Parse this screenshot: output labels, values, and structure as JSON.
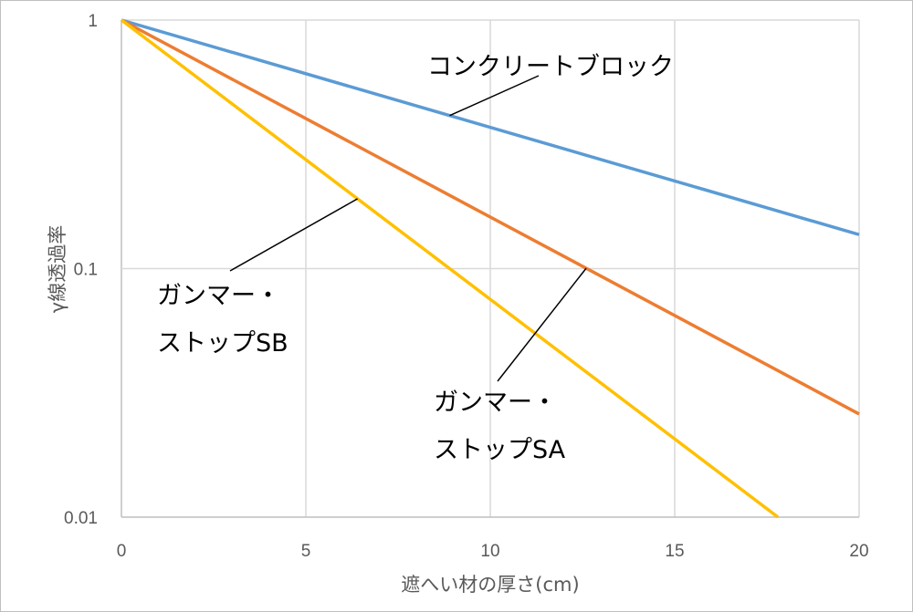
{
  "chart_data": {
    "type": "line",
    "title": "",
    "xlabel": "遮へい材の厚さ(cm)",
    "ylabel": "γ線透過率",
    "xlim": [
      0,
      20
    ],
    "ylim": [
      0.01,
      1
    ],
    "yscale": "log",
    "grid": true,
    "x_ticks": [
      "0",
      "5",
      "10",
      "15",
      "20"
    ],
    "y_ticks": [
      "1",
      "0.1",
      "0.01"
    ],
    "series": [
      {
        "name": "コンクリートブロック",
        "color": "#5B9BD5",
        "x": [
          0,
          20
        ],
        "y": [
          1,
          0.137
        ]
      },
      {
        "name": "ガンマー・ストップSA",
        "color": "#ED7D31",
        "x": [
          0,
          20
        ],
        "y": [
          1,
          0.026
        ]
      },
      {
        "name": "ガンマー・ストップSB",
        "color": "#FFC000",
        "x": [
          0,
          17.8
        ],
        "y": [
          1,
          0.01
        ]
      }
    ],
    "annotations": [
      {
        "lines": [
          "コンクリートブロック"
        ],
        "target_x": 8.9,
        "series": 0
      },
      {
        "lines": [
          "ガンマー・",
          "ストップSB"
        ],
        "target_x": 6.4,
        "series": 2
      },
      {
        "lines": [
          "ガンマー・",
          "ストップSA"
        ],
        "target_x": 12.6,
        "series": 1
      }
    ]
  }
}
